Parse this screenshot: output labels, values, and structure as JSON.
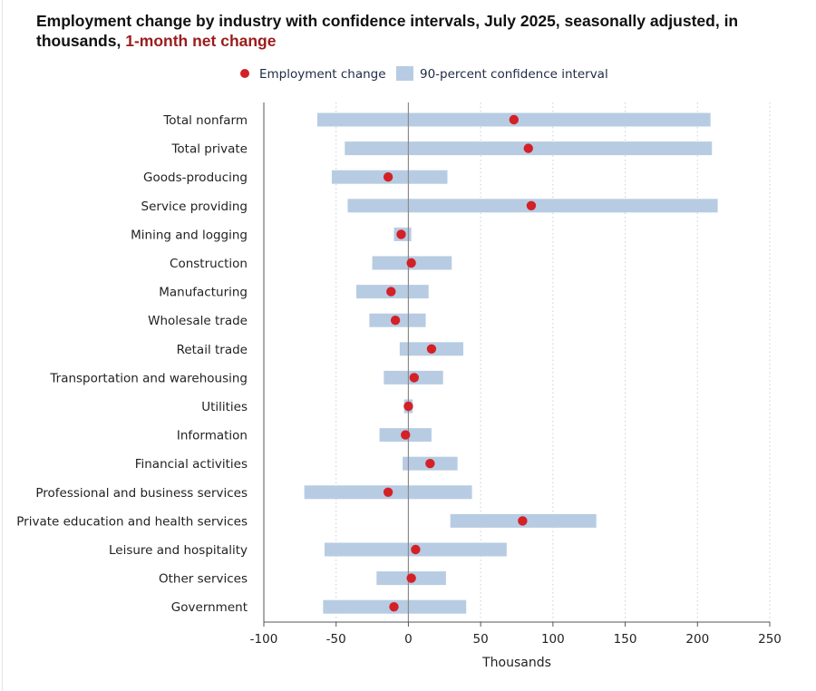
{
  "title": {
    "main": "Employment change by industry with confidence intervals, July 2025, seasonally adjusted, in thousands,",
    "highlight": "1-month net change"
  },
  "legend": {
    "point_label": "Employment change",
    "interval_label": "90-percent confidence interval"
  },
  "colors": {
    "point": "#d42027",
    "interval": "#b7cce2",
    "axis": "#555555",
    "grid": "#c9cfd6",
    "highlight": "#9b1c1c"
  },
  "chart_data": {
    "type": "dot-interval",
    "title": "Employment change by industry with confidence intervals, July 2025, seasonally adjusted, in thousands, 1-month net change",
    "xlabel": "Thousands",
    "ylabel": "",
    "xlim": [
      -100,
      250
    ],
    "xticks": [
      -100,
      -50,
      0,
      50,
      100,
      150,
      200,
      250
    ],
    "grid": "vertical dotted",
    "legend_position": "top-center",
    "categories": [
      "Total nonfarm",
      "Total private",
      "Goods-producing",
      "Service providing",
      "Mining and logging",
      "Construction",
      "Manufacturing",
      "Wholesale trade",
      "Retail trade",
      "Transportation and warehousing",
      "Utilities",
      "Information",
      "Financial activities",
      "Professional and business services",
      "Private education and health services",
      "Leisure and hospitality",
      "Other services",
      "Government"
    ],
    "series": [
      {
        "name": "Employment change",
        "values": [
          73,
          83,
          -14,
          85,
          -5,
          2,
          -12,
          -9,
          16,
          4,
          0,
          -2,
          15,
          -14,
          79,
          5,
          2,
          -10
        ]
      },
      {
        "name": "90-percent confidence interval",
        "low": [
          -63,
          -44,
          -53,
          -42,
          -10,
          -25,
          -36,
          -27,
          -6,
          -17,
          -3,
          -20,
          -4,
          -72,
          29,
          -58,
          -22,
          -59
        ],
        "high": [
          209,
          210,
          27,
          214,
          2,
          30,
          14,
          12,
          38,
          24,
          3,
          16,
          34,
          44,
          130,
          68,
          26,
          40
        ]
      }
    ]
  }
}
